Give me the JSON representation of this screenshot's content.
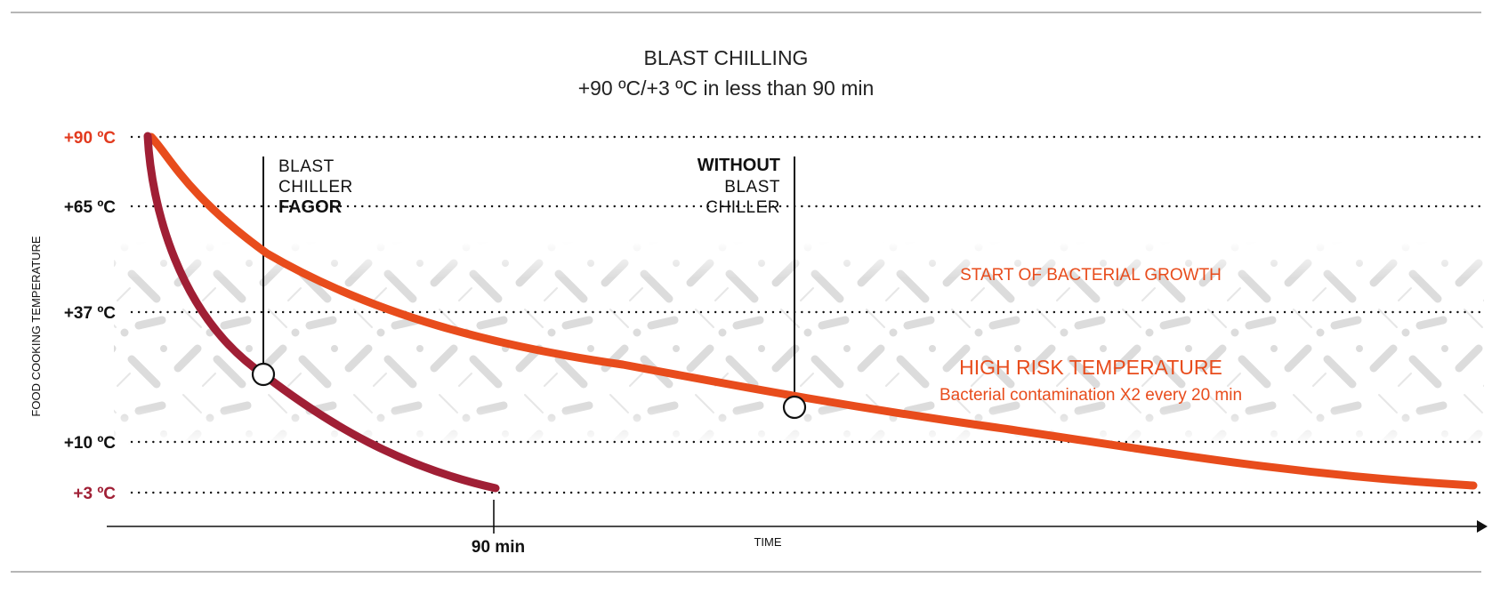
{
  "title": "BLAST CHILLING",
  "subtitle": "+90 ºC/+3 ºC in less than 90 min",
  "y_axis_label": "FOOD COOKING TEMPERATURE",
  "x_axis_label": "TIME",
  "x_marker_label": "90 min",
  "temperature_levels": [
    {
      "label": "+90 ºC",
      "value": 90,
      "color": "#e23a1e"
    },
    {
      "label": "+65 ºC",
      "value": 65,
      "color": "#111111"
    },
    {
      "label": "+37 ºC",
      "value": 37,
      "color": "#111111"
    },
    {
      "label": "+10 ºC",
      "value": 10,
      "color": "#111111"
    },
    {
      "label": "+3 ºC",
      "value": 3,
      "color": "#a01f35"
    }
  ],
  "annotations": {
    "with_chiller": {
      "line1": "BLAST",
      "line2": "CHILLER",
      "line3": "FAGOR"
    },
    "without_chiller": {
      "line1": "WITHOUT",
      "line2": "BLAST",
      "line3": "CHILLER"
    }
  },
  "zones": {
    "start_growth": "START OF BACTERIAL GROWTH",
    "high_risk_title": "HIGH RISK TEMPERATURE",
    "high_risk_sub": "Bacterial contamination X2 every 20 min"
  },
  "colors": {
    "blast_chiller_curve": "#a01f35",
    "no_chiller_curve": "#e84c1c",
    "accent_red": "#e23a1e",
    "hatch": "#d9d9d9"
  }
}
